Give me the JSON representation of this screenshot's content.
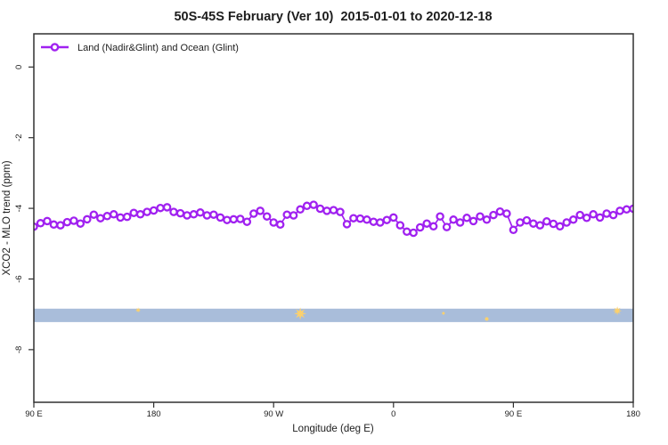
{
  "title": "50S-45S February (Ver 10)  2015-01-01 to 2020-12-18",
  "colors": {
    "series": "#A021F0",
    "marker_fill": "#FFFFFF",
    "ocean_band": "#A9BDDA",
    "land_marks": "#FBD06D",
    "axis": "#303030",
    "background": "#FFFFFF"
  },
  "chart_data": {
    "type": "line",
    "title": "50S-45S February (Ver 10)  2015-01-01 to 2020-12-18",
    "xlabel": "Longitude (deg E)",
    "ylabel": "XCO2 - MLO trend (ppm)",
    "xlim": [
      90,
      540
    ],
    "ylim": [
      -9.49,
      0.94
    ],
    "grid": false,
    "legend_position": "top-left",
    "x_ticks": [
      {
        "value": 90,
        "label": "90 E"
      },
      {
        "value": 180,
        "label": "180"
      },
      {
        "value": 270,
        "label": "90 W"
      },
      {
        "value": 360,
        "label": "0"
      },
      {
        "value": 450,
        "label": "90 E"
      },
      {
        "value": 540,
        "label": "180"
      }
    ],
    "y_ticks": [
      {
        "value": 0,
        "label": "0"
      },
      {
        "value": -2,
        "label": "-2"
      },
      {
        "value": -4,
        "label": "-4"
      },
      {
        "value": -6,
        "label": "-6"
      },
      {
        "value": -8,
        "label": "-8"
      }
    ],
    "series": [
      {
        "name": "Land (Nadir&Glint) and Ocean (Glint)",
        "marker": "open-circle",
        "x_start": 90,
        "x_step": 5,
        "values": [
          -4.52,
          -4.42,
          -4.36,
          -4.46,
          -4.48,
          -4.39,
          -4.35,
          -4.43,
          -4.31,
          -4.18,
          -4.28,
          -4.22,
          -4.17,
          -4.26,
          -4.24,
          -4.13,
          -4.17,
          -4.1,
          -4.06,
          -3.99,
          -3.97,
          -4.1,
          -4.14,
          -4.2,
          -4.17,
          -4.12,
          -4.2,
          -4.18,
          -4.26,
          -4.33,
          -4.31,
          -4.3,
          -4.38,
          -4.15,
          -4.07,
          -4.23,
          -4.4,
          -4.46,
          -4.18,
          -4.2,
          -4.03,
          -3.93,
          -3.9,
          -4.01,
          -4.07,
          -4.05,
          -4.1,
          -4.45,
          -4.28,
          -4.29,
          -4.32,
          -4.38,
          -4.4,
          -4.33,
          -4.26,
          -4.48,
          -4.66,
          -4.69,
          -4.54,
          -4.43,
          -4.51,
          -4.23,
          -4.53,
          -4.32,
          -4.4,
          -4.27,
          -4.36,
          -4.23,
          -4.32,
          -4.19,
          -4.09,
          -4.15,
          -4.61,
          -4.4,
          -4.34,
          -4.43,
          -4.48,
          -4.37,
          -4.44,
          -4.51,
          -4.4,
          -4.32,
          -4.19,
          -4.27,
          -4.17,
          -4.26,
          -4.15,
          -4.19,
          -4.07,
          -4.03,
          -4.01
        ]
      }
    ],
    "surface_band": {
      "y_top": -6.84,
      "y_bottom": -7.22,
      "land_marks": [
        {
          "x": 168.3,
          "y": -6.88,
          "shape": "star",
          "r": 3
        },
        {
          "x": 290.0,
          "y": -6.98,
          "shape": "star",
          "r": 7
        },
        {
          "x": 397.5,
          "y": -6.97,
          "shape": "dot",
          "r": 1.5
        },
        {
          "x": 430.0,
          "y": -7.13,
          "shape": "dot",
          "r": 2
        },
        {
          "x": 528.0,
          "y": -6.9,
          "shape": "star",
          "r": 5
        }
      ]
    }
  }
}
